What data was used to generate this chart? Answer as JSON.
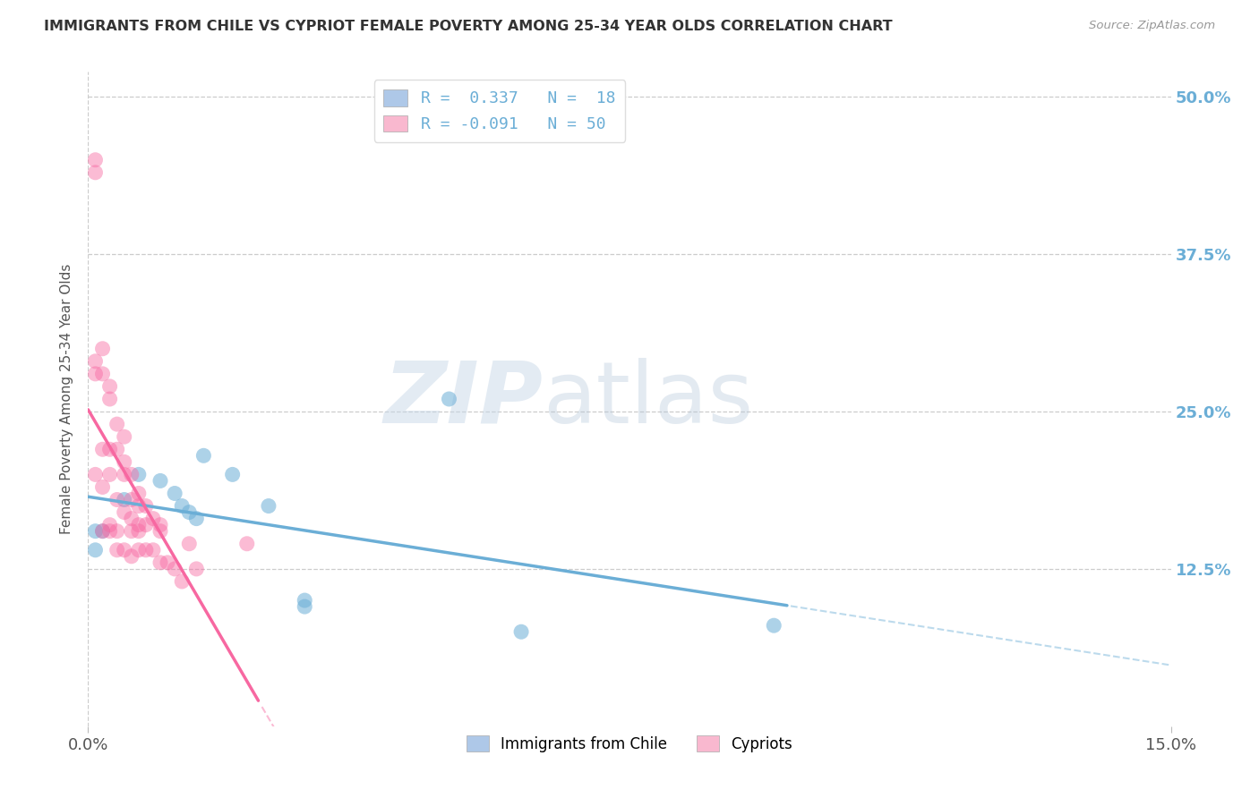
{
  "title": "IMMIGRANTS FROM CHILE VS CYPRIOT FEMALE POVERTY AMONG 25-34 YEAR OLDS CORRELATION CHART",
  "source": "Source: ZipAtlas.com",
  "ylabel_label": "Female Poverty Among 25-34 Year Olds",
  "x_range": [
    0.0,
    0.15
  ],
  "y_range": [
    0.0,
    0.52
  ],
  "blue_color": "#6baed6",
  "pink_color": "#f768a1",
  "blue_fill": "#aec8e8",
  "pink_fill": "#f9b8cf",
  "watermark_zip": "ZIP",
  "watermark_atlas": "atlas",
  "chile_R": 0.337,
  "chile_N": 18,
  "cypriot_R": -0.091,
  "cypriot_N": 50,
  "chile_scatter_x": [
    0.001,
    0.001,
    0.002,
    0.005,
    0.007,
    0.01,
    0.012,
    0.013,
    0.014,
    0.015,
    0.016,
    0.02,
    0.025,
    0.03,
    0.03,
    0.05,
    0.06,
    0.095
  ],
  "chile_scatter_y": [
    0.155,
    0.14,
    0.155,
    0.18,
    0.2,
    0.195,
    0.185,
    0.175,
    0.17,
    0.165,
    0.215,
    0.2,
    0.175,
    0.095,
    0.1,
    0.26,
    0.075,
    0.08
  ],
  "cypriot_scatter_x": [
    0.001,
    0.001,
    0.001,
    0.001,
    0.001,
    0.002,
    0.002,
    0.002,
    0.002,
    0.002,
    0.003,
    0.003,
    0.003,
    0.003,
    0.003,
    0.003,
    0.004,
    0.004,
    0.004,
    0.004,
    0.004,
    0.005,
    0.005,
    0.005,
    0.005,
    0.005,
    0.006,
    0.006,
    0.006,
    0.006,
    0.006,
    0.007,
    0.007,
    0.007,
    0.007,
    0.007,
    0.008,
    0.008,
    0.008,
    0.009,
    0.009,
    0.01,
    0.01,
    0.01,
    0.011,
    0.012,
    0.013,
    0.014,
    0.015,
    0.022
  ],
  "cypriot_scatter_y": [
    0.45,
    0.44,
    0.29,
    0.28,
    0.2,
    0.3,
    0.28,
    0.22,
    0.19,
    0.155,
    0.27,
    0.26,
    0.22,
    0.2,
    0.16,
    0.155,
    0.24,
    0.22,
    0.18,
    0.155,
    0.14,
    0.23,
    0.21,
    0.2,
    0.17,
    0.14,
    0.2,
    0.18,
    0.165,
    0.155,
    0.135,
    0.185,
    0.175,
    0.16,
    0.155,
    0.14,
    0.175,
    0.16,
    0.14,
    0.165,
    0.14,
    0.16,
    0.155,
    0.13,
    0.13,
    0.125,
    0.115,
    0.145,
    0.125,
    0.145
  ],
  "grid_color": "#cccccc",
  "background_color": "#ffffff",
  "title_color": "#333333"
}
